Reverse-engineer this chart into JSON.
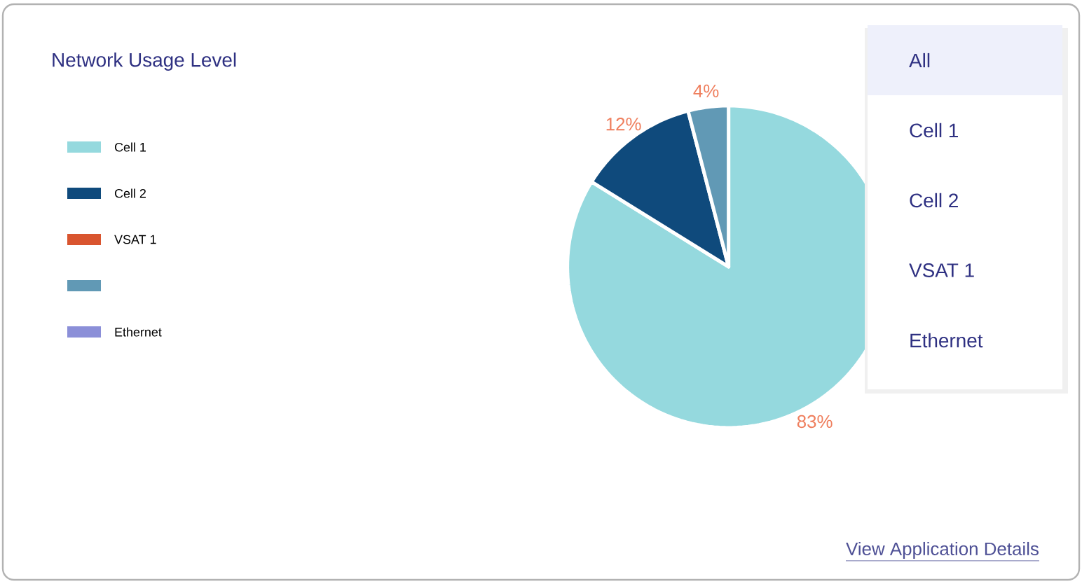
{
  "chart_data": {
    "type": "pie",
    "title": "Network Usage Level",
    "categories": [
      "Cell 1",
      "Cell 2",
      "VSAT 1",
      null,
      "Ethernet"
    ],
    "values": [
      83,
      12,
      0,
      4,
      0
    ],
    "colors": [
      "#95d9de",
      "#0f4a7c",
      "#d9552f",
      "#6199b5",
      "#8b8fd8"
    ],
    "value_labels": [
      "83%",
      "12%",
      null,
      "4%",
      null
    ],
    "legend": "left",
    "annotations": [
      "All",
      "Cell 1",
      "Cell 2",
      "VSAT 1",
      "Ethernet",
      "View Application Details"
    ]
  }
}
